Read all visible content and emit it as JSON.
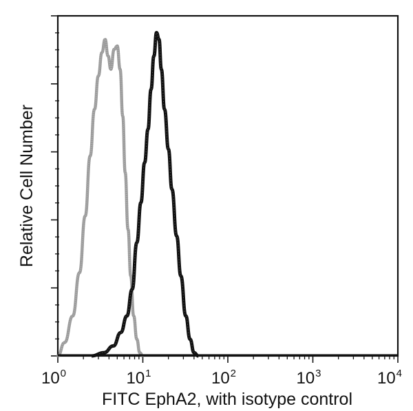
{
  "chart_data": {
    "type": "line",
    "subtype": "flow-cytometry-histogram-overlay",
    "title": "",
    "xlabel": "FITC EphA2, with isotype control",
    "ylabel": "Relative Cell Number",
    "xscale": "log",
    "xlim": [
      1,
      10000
    ],
    "ylim": [
      0,
      100
    ],
    "grid": false,
    "legend": "none",
    "x_ticks": [
      {
        "base": "10",
        "exp": "0",
        "value": 1
      },
      {
        "base": "10",
        "exp": "1",
        "value": 10
      },
      {
        "base": "10",
        "exp": "2",
        "value": 100
      },
      {
        "base": "10",
        "exp": "3",
        "value": 1000
      },
      {
        "base": "10",
        "exp": "4",
        "value": 10000
      }
    ],
    "y_major_ticks": 5,
    "series": [
      {
        "name": "Isotype control",
        "style": "dotted-gray",
        "color": "#8a8a8a",
        "x": [
          1.0,
          1.2,
          1.5,
          1.8,
          2.1,
          2.4,
          2.7,
          3.0,
          3.3,
          3.6,
          3.9,
          4.2,
          4.6,
          5.0,
          5.4,
          5.8,
          6.2,
          6.7,
          7.2,
          7.8,
          8.5,
          9.2,
          10.0
        ],
        "values": [
          0,
          4,
          12,
          25,
          42,
          60,
          74,
          84,
          91,
          95,
          90,
          86,
          92,
          93,
          86,
          72,
          55,
          38,
          24,
          12,
          5,
          1,
          0
        ]
      },
      {
        "name": "FITC EphA2",
        "style": "solid-black",
        "color": "#111111",
        "x": [
          2.5,
          3.5,
          4.5,
          5.5,
          6.5,
          7.5,
          8.5,
          9.5,
          10.5,
          11.5,
          12.5,
          13.5,
          14.5,
          15.5,
          16.5,
          18,
          20,
          22,
          25,
          28,
          32,
          36,
          40,
          45
        ],
        "values": [
          0,
          1,
          3,
          7,
          12,
          20,
          34,
          46,
          58,
          68,
          80,
          90,
          97,
          95,
          86,
          74,
          62,
          50,
          36,
          24,
          12,
          5,
          1,
          0
        ]
      }
    ]
  },
  "colors": {
    "frame": "#111111",
    "background": "#ffffff"
  }
}
